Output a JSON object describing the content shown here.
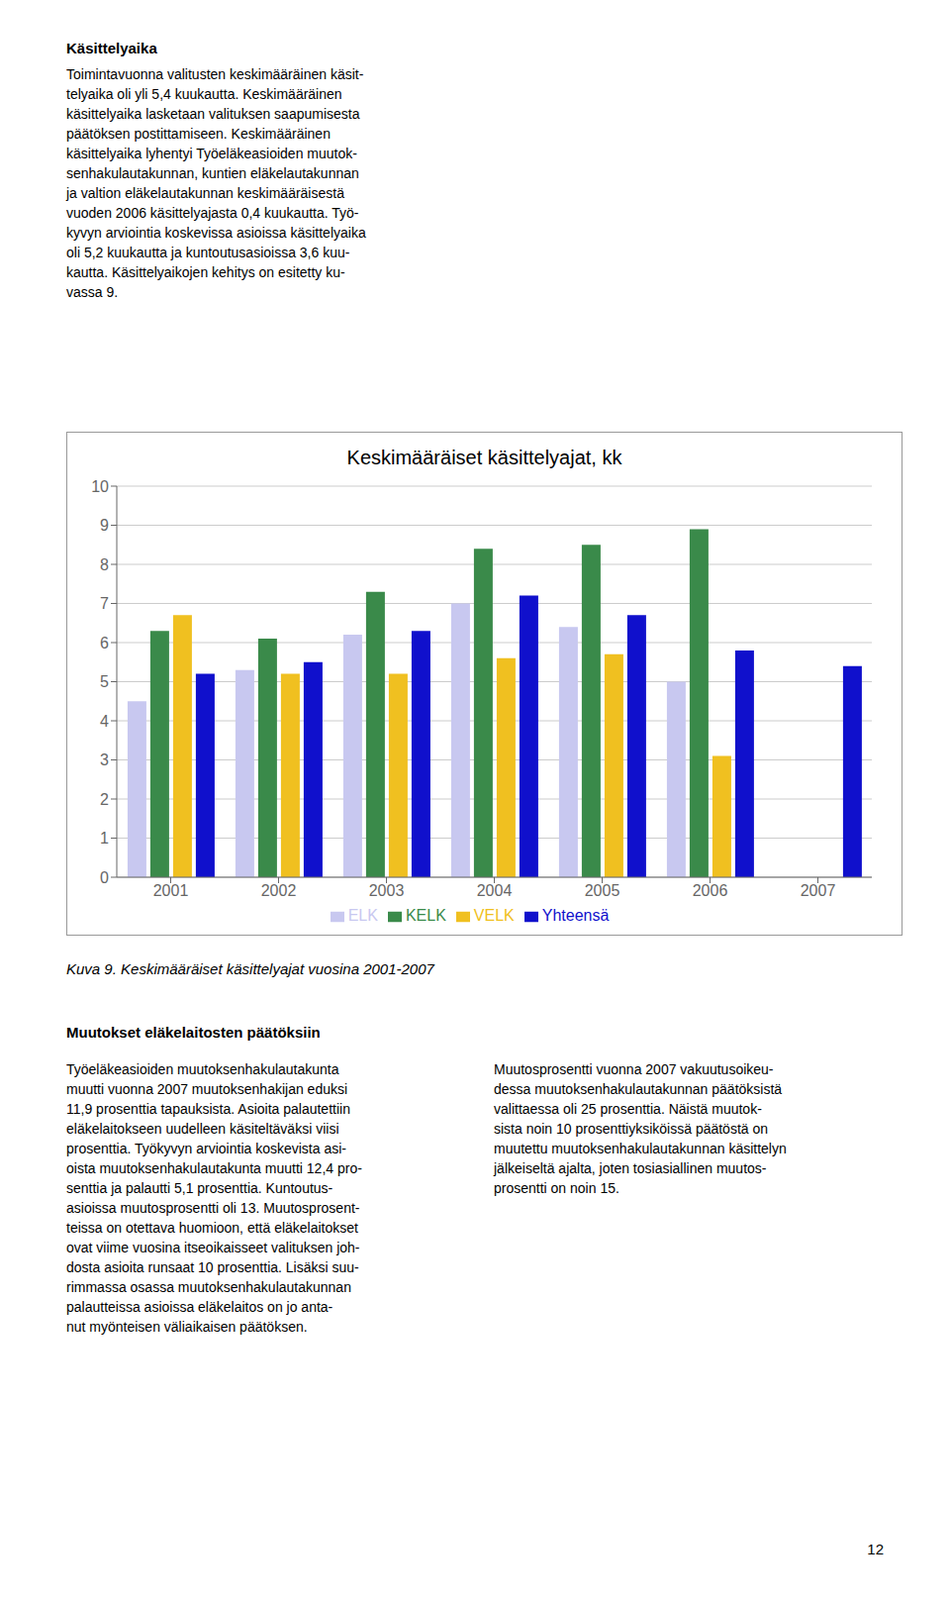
{
  "chart_data": {
    "type": "bar",
    "title": "Keskimääräiset käsittelyajat, kk",
    "categories": [
      "2001",
      "2002",
      "2003",
      "2004",
      "2005",
      "2006",
      "2007"
    ],
    "series": [
      {
        "name": "ELK",
        "color": "#c8c8f0",
        "values": [
          4.5,
          5.3,
          6.2,
          7.0,
          6.4,
          5.0,
          null
        ]
      },
      {
        "name": "KELK",
        "color": "#3a8a4a",
        "values": [
          6.3,
          6.1,
          7.3,
          8.4,
          8.5,
          8.9,
          null
        ]
      },
      {
        "name": "VELK",
        "color": "#f0c020",
        "values": [
          6.7,
          5.2,
          5.2,
          5.6,
          5.7,
          3.1,
          null
        ]
      },
      {
        "name": "Yhteensä",
        "color": "#1010cc",
        "values": [
          5.2,
          5.5,
          6.3,
          7.2,
          6.7,
          5.8,
          5.4
        ]
      }
    ],
    "ylim": [
      0,
      10
    ],
    "yticks": [
      0,
      1,
      2,
      3,
      4,
      5,
      6,
      7,
      8,
      9,
      10
    ],
    "grid": true,
    "legend": "bottom"
  },
  "page_text": {
    "heading": "Käsittelyaika",
    "body": [
      "Toimintavuonna valitusten keskimääräinen käsit-",
      "telyaika oli yli 5,4 kuukautta. Keskimääräinen",
      "käsittelyaika lasketaan valituksen saapumisesta",
      "päätöksen postittamiseen. Keskimääräinen",
      "käsittelyaika lyhentyi Työeläkeasioiden muutok-",
      "senhakulautakunnan, kuntien eläkelautakunnan",
      "ja valtion eläkelautakunnan keskimääräisestä",
      "vuoden 2006 käsittelyajasta 0,4 kuukautta. Työ-",
      "kyvyn arviointia koskevissa asioissa käsittelyaika",
      "oli 5,2 kuukautta ja kuntoutusasioissa 3,6 kuu-",
      "kautta. Käsittelyaikojen kehitys on esitetty ku-",
      "vassa 9."
    ],
    "caption": "Kuva 9. Keskimääräiset käsittelyajat vuosina 2001-2007",
    "left_heading": "Muutokset eläkelaitosten päätöksiin",
    "left_body": [
      "Työeläkeasioiden muutoksenhakulautakunta",
      "muutti vuonna 2007 muutoksenhakijan eduksi",
      "11,9 prosenttia tapauksista. Asioita palautettiin",
      "eläkelaitokseen uudelleen käsiteltäväksi viisi",
      "prosenttia. Työkyvyn arviointia koskevista asi-",
      "oista muutoksenhakulautakunta muutti 12,4 pro-",
      "senttia ja palautti 5,1 prosenttia. Kuntoutus-",
      "asioissa muutosprosentti oli 13. Muutosprosent-",
      "teissa on otettava huomioon, että eläkelaitokset",
      "ovat viime vuosina itseoikaisseet valituksen joh-",
      "dosta asioita runsaat 10 prosenttia. Lisäksi suu-",
      "rimmassa osassa muutoksenhakulautakunnan",
      "palautteissa asioissa eläkelaitos on jo anta-",
      "nut myönteisen väliaikaisen päätöksen."
    ],
    "right_body": [
      "Muutosprosentti vuonna 2007 vakuutusoikeu-",
      "dessa muutoksenhakulautakunnan päätöksistä",
      "valittaessa oli 25 prosenttia. Näistä muutok-",
      "sista noin 10 prosenttiyksiköissä päätöstä on",
      "muutettu muutoksenhakulautakunnan käsittelyn",
      "jälkeiseltä ajalta, joten tosiasiallinen muutos-",
      "prosentti on noin 15."
    ],
    "page_number": "12"
  }
}
